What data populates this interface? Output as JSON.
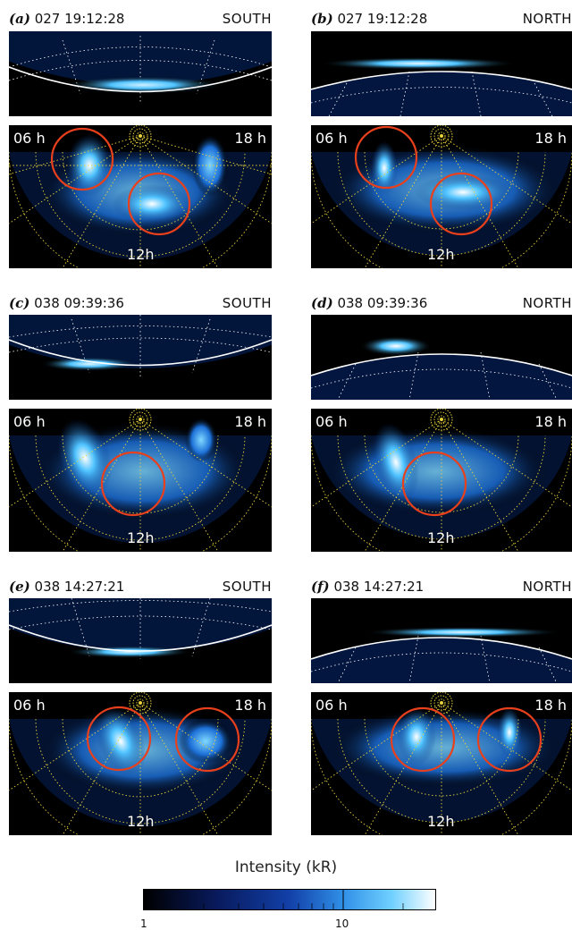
{
  "labels": {
    "h06": "06 h",
    "h18": "18 h",
    "h12": "12h"
  },
  "panels": [
    {
      "letter": "(a)",
      "info": "027  19:12:28",
      "hemisphere": "SOUTH"
    },
    {
      "letter": "(b)",
      "info": "027  19:12:28",
      "hemisphere": "NORTH"
    },
    {
      "letter": "(c)",
      "info": "038  09:39:36",
      "hemisphere": "SOUTH"
    },
    {
      "letter": "(d)",
      "info": "038  09:39:36",
      "hemisphere": "NORTH"
    },
    {
      "letter": "(e)",
      "info": "038  14:27:21",
      "hemisphere": "SOUTH"
    },
    {
      "letter": "(f)",
      "info": "038  14:27:21",
      "hemisphere": "NORTH"
    }
  ],
  "colorbar": {
    "title": "Intensity (kR)",
    "min_label": "1",
    "mid_label": "10"
  },
  "colors": {
    "circle": "#e8401c",
    "grid": "#e8d23a",
    "emission": "#4fc3ff"
  }
}
